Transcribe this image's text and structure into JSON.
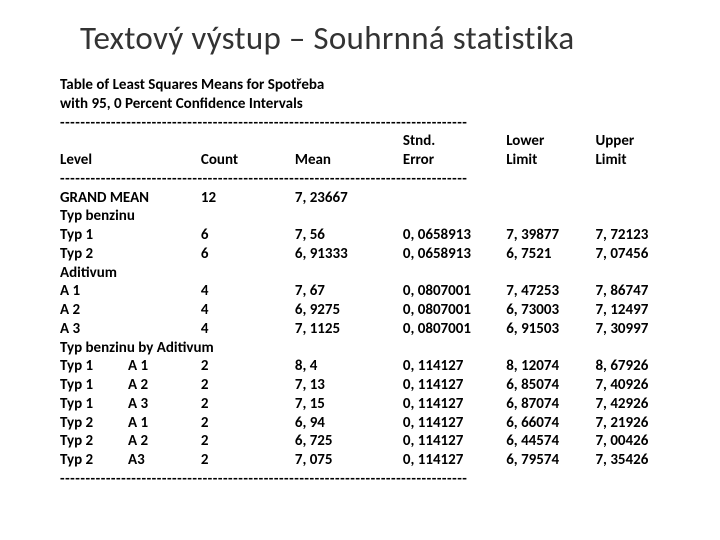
{
  "title": "Textový výstup – Souhrnná statistika",
  "header": {
    "line1": "Table of Least Squares Means for Spotřeba",
    "line2": "with 95, 0 Percent Confidence Intervals"
  },
  "divider": "--------------------------------------------------------------------------------",
  "columns": {
    "level": "Level",
    "count": "Count",
    "mean": "Mean",
    "stnd": "Stnd.",
    "error": "Error",
    "lower": "Lower",
    "upper": "Upper",
    "limit": "Limit"
  },
  "rows": [
    {
      "label": "GRAND MEAN",
      "count": "12",
      "mean": "7, 23667",
      "err": "",
      "low": "",
      "up": ""
    },
    {
      "label": "Typ benzinu",
      "count": "",
      "mean": "",
      "err": "",
      "low": "",
      "up": ""
    },
    {
      "label": "Typ 1",
      "count": "6",
      "mean": "7, 56",
      "err": "0, 0658913",
      "low": "7, 39877",
      "up": "7, 72123"
    },
    {
      "label": "Typ 2",
      "count": "6",
      "mean": "6, 91333",
      "err": "0, 0658913",
      "low": "6, 7521",
      "up": "7, 07456"
    },
    {
      "label": "Aditivum",
      "count": "",
      "mean": "",
      "err": "",
      "low": "",
      "up": ""
    },
    {
      "label": "A 1",
      "count": "4",
      "mean": "7, 67",
      "err": "0, 0807001",
      "low": "7, 47253",
      "up": "7, 86747"
    },
    {
      "label": "A 2",
      "count": "4",
      "mean": "6, 9275",
      "err": "0, 0807001",
      "low": "6, 73003",
      "up": "7, 12497"
    },
    {
      "label": "A 3",
      "count": "4",
      "mean": "7, 1125",
      "err": "0, 0807001",
      "low": "6, 91503",
      "up": "7, 30997"
    },
    {
      "label": "Typ benzinu by Aditivum",
      "count": "",
      "mean": "",
      "err": "",
      "low": "",
      "up": ""
    }
  ],
  "combo_rows": [
    {
      "a": "Typ 1",
      "b": "A 1",
      "count": "2",
      "mean": "8, 4",
      "err": "0, 114127",
      "low": "8, 12074",
      "up": "8, 67926"
    },
    {
      "a": "Typ 1",
      "b": "A 2",
      "count": "2",
      "mean": "7, 13",
      "err": "0, 114127",
      "low": "6, 85074",
      "up": "7, 40926"
    },
    {
      "a": "Typ 1",
      "b": "A 3",
      "count": "2",
      "mean": "7, 15",
      "err": "0, 114127",
      "low": "6, 87074",
      "up": "7, 42926"
    },
    {
      "a": "Typ 2",
      "b": "A 1",
      "count": "2",
      "mean": "6, 94",
      "err": "0, 114127",
      "low": "6, 66074",
      "up": "7, 21926"
    },
    {
      "a": "Typ 2",
      "b": "A 2",
      "count": "2",
      "mean": "6, 725",
      "err": "0, 114127",
      "low": "6, 44574",
      "up": "7, 00426"
    },
    {
      "a": "Typ 2",
      "b": "A3",
      "count": "2",
      "mean": "7, 075",
      "err": "0, 114127",
      "low": "6, 79574",
      "up": "7, 35426"
    }
  ]
}
